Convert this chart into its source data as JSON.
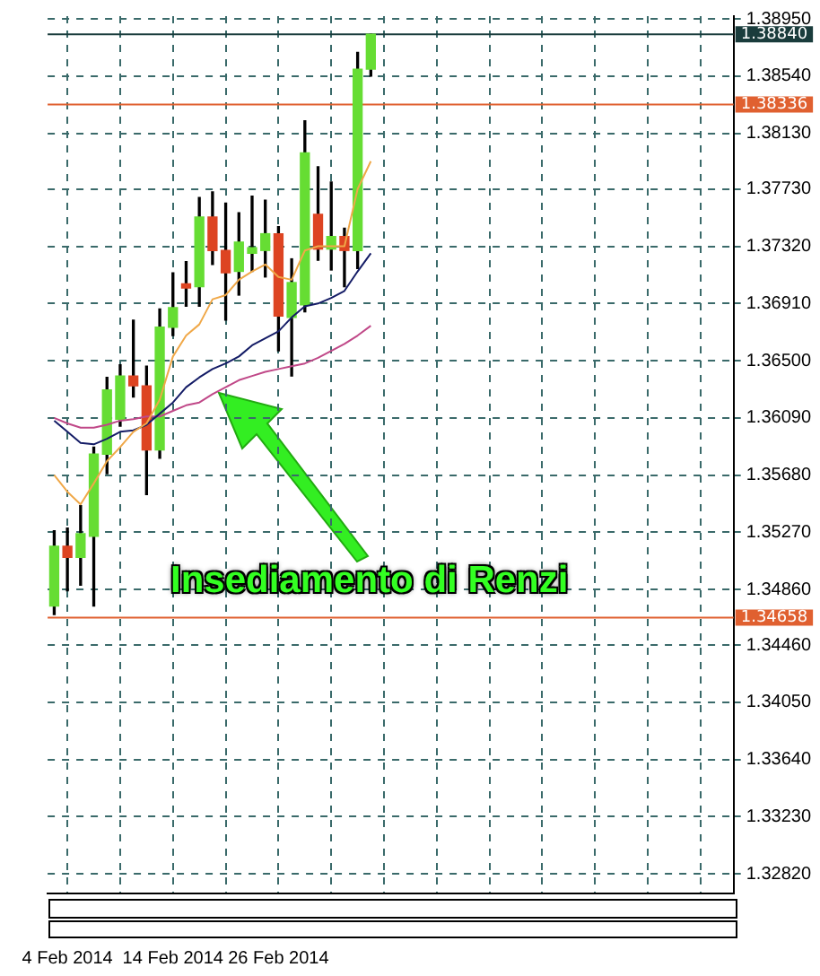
{
  "chart_data": {
    "type": "candlestick",
    "categories": [
      null,
      "4 Feb 2014",
      null,
      null,
      null,
      null,
      null,
      null,
      null,
      "14 Feb 2014",
      null,
      null,
      null,
      null,
      null,
      null,
      null,
      "26 Feb 2014",
      null,
      null,
      null,
      null,
      null,
      null,
      null,
      null,
      null,
      null,
      null,
      null,
      null,
      null,
      null,
      null,
      null,
      null,
      null,
      null,
      null,
      null,
      null,
      null,
      null,
      null,
      null,
      null,
      null,
      null,
      null,
      null,
      null,
      null
    ],
    "ohlc": [
      [
        1.3474,
        1.3528,
        1.3468,
        1.3517
      ],
      [
        1.3517,
        1.353,
        1.3485,
        1.3509
      ],
      [
        1.3509,
        1.3546,
        1.3489,
        1.3526
      ],
      [
        1.3524,
        1.3588,
        1.3474,
        1.3583
      ],
      [
        1.3583,
        1.3638,
        1.3569,
        1.3629
      ],
      [
        1.3608,
        1.3647,
        1.3603,
        1.3639
      ],
      [
        1.3639,
        1.3679,
        1.3624,
        1.3632
      ],
      [
        1.3632,
        1.3646,
        1.3554,
        1.3586
      ],
      [
        1.3586,
        1.3687,
        1.358,
        1.3674
      ],
      [
        1.3674,
        1.3713,
        1.3668,
        1.3688
      ],
      [
        1.3705,
        1.3721,
        1.3689,
        1.3702
      ],
      [
        1.3703,
        1.3767,
        1.3689,
        1.3753
      ],
      [
        1.3753,
        1.3771,
        1.3719,
        1.3729
      ],
      [
        1.3729,
        1.3763,
        1.3679,
        1.3713
      ],
      [
        1.3714,
        1.3756,
        1.3697,
        1.3735
      ],
      [
        1.3727,
        1.3768,
        1.3714,
        1.3731
      ],
      [
        1.3729,
        1.3765,
        1.371,
        1.3741
      ],
      [
        1.3741,
        1.3746,
        1.3657,
        1.3682
      ],
      [
        1.3681,
        1.3723,
        1.3639,
        1.3706
      ],
      [
        1.369,
        1.3822,
        1.3685,
        1.3799
      ],
      [
        1.3755,
        1.3789,
        1.3722,
        1.373
      ],
      [
        1.373,
        1.3778,
        1.3715,
        1.3739
      ],
      [
        1.3739,
        1.3745,
        1.3703,
        1.3729
      ],
      [
        1.3729,
        1.3871,
        1.3716,
        1.3859
      ],
      [
        1.3859,
        1.3884,
        1.3854,
        1.3884
      ],
      null,
      null,
      null,
      null,
      null,
      null,
      null,
      null,
      null,
      null,
      null,
      null,
      null,
      null,
      null,
      null,
      null,
      null,
      null,
      null,
      null,
      null,
      null,
      null,
      null,
      null,
      null
    ],
    "colors": [
      "#66dd33",
      "#dd4422",
      "#66dd33",
      "#66dd33",
      "#66dd33",
      "#66dd33",
      "#dd4422",
      "#dd4422",
      "#66dd33",
      "#66dd33",
      "#dd4422",
      "#66dd33",
      "#dd4422",
      "#dd4422",
      "#66dd33",
      "#66dd33",
      "#66dd33",
      "#dd4422",
      "#66dd33",
      "#66dd33",
      "#dd4422",
      "#66dd33",
      "#dd4422",
      "#66dd33",
      "#66dd33",
      null,
      null,
      null,
      null,
      null,
      null,
      null,
      null,
      null,
      null,
      null,
      null,
      null,
      null,
      null,
      null,
      null,
      null,
      null,
      null,
      null,
      null,
      null,
      null,
      null,
      null,
      null
    ],
    "series": [
      {
        "type": "line",
        "color": "#f0a848",
        "values": [
          1.3568,
          1.3556,
          1.3547,
          1.3562,
          1.3578,
          1.3588,
          1.3599,
          1.3605,
          1.3622,
          1.3653,
          1.3668,
          1.3676,
          1.3694,
          1.3697,
          1.3708,
          1.3714,
          1.3719,
          1.371,
          1.3708,
          1.3729,
          1.3732,
          1.3732,
          1.3732,
          1.3773,
          1.3793,
          null,
          null,
          null,
          null,
          null,
          null,
          null,
          null,
          null,
          null,
          null,
          null,
          null,
          null,
          null,
          null,
          null,
          null,
          null,
          null,
          null,
          null,
          null,
          null,
          null,
          null,
          null
        ]
      },
      {
        "type": "line",
        "color": "#141c66",
        "values": [
          1.3607,
          1.3599,
          1.3591,
          1.359,
          1.3594,
          1.3599,
          1.36,
          1.3604,
          1.3612,
          1.362,
          1.3631,
          1.3638,
          1.3644,
          1.3648,
          1.3653,
          1.3661,
          1.3666,
          1.3671,
          1.3681,
          1.3689,
          1.3691,
          1.3695,
          1.37,
          1.3714,
          1.3727,
          null,
          null,
          null,
          null,
          null,
          null,
          null,
          null,
          null,
          null,
          null,
          null,
          null,
          null,
          null,
          null,
          null,
          null,
          null,
          null,
          null,
          null,
          null,
          null,
          null,
          null,
          null
        ]
      },
      {
        "type": "line",
        "color": "#c04888",
        "values": [
          1.3609,
          1.3605,
          1.3602,
          1.3602,
          1.3604,
          1.3607,
          1.3608,
          1.361,
          1.361,
          1.3614,
          1.3618,
          1.362,
          1.3626,
          1.3631,
          1.3636,
          1.3639,
          1.3642,
          1.3644,
          1.3646,
          1.3648,
          1.3652,
          1.3657,
          1.3662,
          1.3668,
          1.3675,
          null,
          null,
          null,
          null,
          null,
          null,
          null,
          null,
          null,
          null,
          null,
          null,
          null,
          null,
          null,
          null,
          null,
          null,
          null,
          null,
          null,
          null,
          null,
          null,
          null,
          null,
          null
        ]
      }
    ],
    "ylim": [
      1.3268,
      1.3897
    ],
    "yticks": [
      {
        "value": 1.3282,
        "label": "1.32820"
      },
      {
        "value": 1.3323,
        "label": "1.33230"
      },
      {
        "value": 1.3364,
        "label": "1.33640"
      },
      {
        "value": 1.3405,
        "label": "1.34050"
      },
      {
        "value": 1.3446,
        "label": "1.34460"
      },
      {
        "value": 1.3486,
        "label": "1.34860"
      },
      {
        "value": 1.3527,
        "label": "1.35270"
      },
      {
        "value": 1.3568,
        "label": "1.35680"
      },
      {
        "value": 1.3609,
        "label": "1.36090"
      },
      {
        "value": 1.365,
        "label": "1.36500"
      },
      {
        "value": 1.3691,
        "label": "1.36910"
      },
      {
        "value": 1.3732,
        "label": "1.37320"
      },
      {
        "value": 1.3773,
        "label": "1.37730"
      },
      {
        "value": 1.3813,
        "label": "1.38130"
      },
      {
        "value": 1.3854,
        "label": "1.38540"
      },
      {
        "value": 1.3895,
        "label": "1.38950"
      }
    ],
    "ref_lines": [
      {
        "axis": "y",
        "value": 1.3884,
        "label": "1.38840",
        "color": "#1a3c3c"
      },
      {
        "axis": "y",
        "value": 1.38336,
        "label": "1.38336",
        "color": "#e06030"
      },
      {
        "axis": "y",
        "value": 1.34658,
        "label": "1.34658",
        "color": "#e06030"
      }
    ],
    "annotations": [
      "Insediamento di Renzi"
    ],
    "grid": true,
    "legend": false
  }
}
